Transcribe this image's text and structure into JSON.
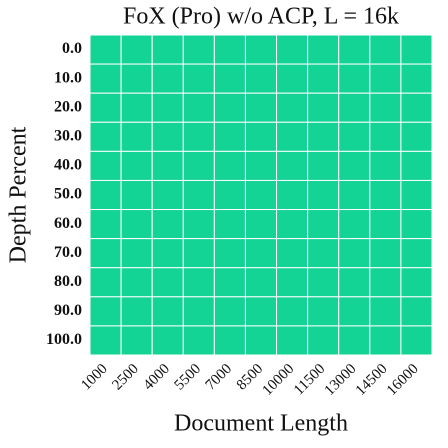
{
  "chart_data": {
    "type": "heatmap",
    "title": "FoX (Pro) w/o ACP, L = 16k",
    "x_label": "Document Length",
    "y_label": "Depth Percent",
    "categories": [
      "1000",
      "2500",
      "4000",
      "5500",
      "7000",
      "8500",
      "10000",
      "11500",
      "13000",
      "14500",
      "16000"
    ],
    "y_categories": [
      "0.0",
      "10.0",
      "20.0",
      "30.0",
      "40.0",
      "50.0",
      "60.0",
      "70.0",
      "80.0",
      "90.0",
      "100.0"
    ],
    "color": "#13d494",
    "values": [
      [
        1,
        1,
        1,
        1,
        1,
        1,
        1,
        1,
        1,
        1,
        1
      ],
      [
        1,
        1,
        1,
        1,
        1,
        1,
        1,
        1,
        1,
        1,
        1
      ],
      [
        1,
        1,
        1,
        1,
        1,
        1,
        1,
        1,
        1,
        1,
        1
      ],
      [
        1,
        1,
        1,
        1,
        1,
        1,
        1,
        1,
        1,
        1,
        1
      ],
      [
        1,
        1,
        1,
        1,
        1,
        1,
        1,
        1,
        1,
        1,
        1
      ],
      [
        1,
        1,
        1,
        1,
        1,
        1,
        1,
        1,
        1,
        1,
        1
      ],
      [
        1,
        1,
        1,
        1,
        1,
        1,
        1,
        1,
        1,
        1,
        1
      ],
      [
        1,
        1,
        1,
        1,
        1,
        1,
        1,
        1,
        1,
        1,
        1
      ],
      [
        1,
        1,
        1,
        1,
        1,
        1,
        1,
        1,
        1,
        1,
        1
      ],
      [
        1,
        1,
        1,
        1,
        1,
        1,
        1,
        1,
        1,
        1,
        1
      ],
      [
        1,
        1,
        1,
        1,
        1,
        1,
        1,
        1,
        1,
        1,
        1
      ]
    ]
  }
}
